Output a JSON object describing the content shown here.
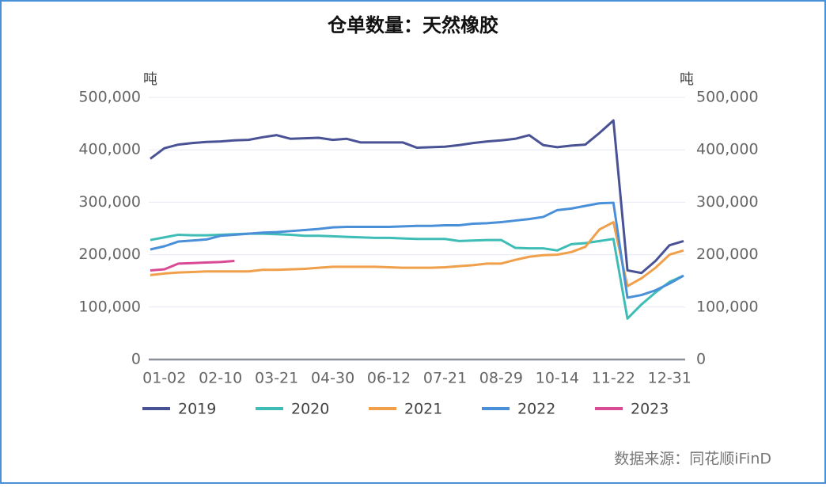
{
  "chart_data": {
    "type": "line",
    "title": "仓单数量：天然橡胶",
    "y_unit": "吨",
    "y2_unit": "吨",
    "source": "数据来源：同花顺iFinD",
    "categories": [
      null,
      "01-02",
      null,
      null,
      null,
      "02-10",
      null,
      null,
      null,
      "03-21",
      null,
      null,
      null,
      "04-30",
      null,
      null,
      null,
      "06-12",
      null,
      null,
      null,
      "07-21",
      null,
      null,
      null,
      "08-29",
      null,
      null,
      null,
      "10-14",
      null,
      null,
      null,
      "11-22",
      null,
      null,
      null,
      "12-31",
      null
    ],
    "ylim": [
      0,
      500000
    ],
    "yticks": [
      0,
      {
        "value": 100000,
        "label": "100,000"
      },
      {
        "value": 200000,
        "label": "200,000"
      },
      {
        "value": 300000,
        "label": "300,000"
      },
      {
        "value": 400000,
        "label": "400,000"
      },
      {
        "value": 500000,
        "label": "500,000"
      }
    ],
    "y2lim": [
      0,
      500000
    ],
    "y2ticks": [
      0,
      {
        "value": 100000,
        "label": "100,000"
      },
      {
        "value": 200000,
        "label": "200,000"
      },
      {
        "value": 300000,
        "label": "300,000"
      },
      {
        "value": 400000,
        "label": "400,000"
      },
      {
        "value": 500000,
        "label": "500,000"
      }
    ],
    "grid": true,
    "legend": "bottom",
    "series": [
      {
        "name": "2019",
        "color": "#4a5296",
        "values": [
          383000,
          403000,
          410000,
          413000,
          415000,
          416000,
          418000,
          419000,
          424000,
          428000,
          421000,
          422000,
          423000,
          419000,
          421000,
          414000,
          414000,
          414000,
          414000,
          404000,
          405000,
          406000,
          409000,
          413000,
          416000,
          418000,
          421000,
          428000,
          409000,
          405000,
          408000,
          410000,
          432000,
          456000,
          170000,
          165000,
          188000,
          218000,
          226000
        ]
      },
      {
        "name": "2020",
        "color": "#3dbdb5",
        "values": [
          228000,
          233000,
          238000,
          237000,
          237000,
          238000,
          239000,
          240000,
          240000,
          239000,
          238000,
          236000,
          236000,
          235000,
          234000,
          233000,
          232000,
          232000,
          231000,
          230000,
          230000,
          230000,
          226000,
          227000,
          228000,
          228000,
          213000,
          212000,
          212000,
          208000,
          220000,
          222000,
          226000,
          230000,
          78000,
          105000,
          128000,
          148000,
          160000
        ]
      },
      {
        "name": "2021",
        "color": "#f0a04b",
        "values": [
          161000,
          164000,
          166000,
          167000,
          168000,
          168000,
          168000,
          168000,
          171000,
          171000,
          172000,
          173000,
          175000,
          177000,
          177000,
          177000,
          177000,
          176000,
          175000,
          175000,
          175000,
          176000,
          178000,
          180000,
          183000,
          183000,
          190000,
          196000,
          199000,
          200000,
          205000,
          215000,
          248000,
          262000,
          140000,
          155000,
          175000,
          200000,
          208000
        ]
      },
      {
        "name": "2022",
        "color": "#4a90d9",
        "values": [
          210000,
          216000,
          225000,
          227000,
          229000,
          236000,
          238000,
          240000,
          242000,
          243000,
          245000,
          247000,
          249000,
          252000,
          253000,
          253000,
          253000,
          253000,
          254000,
          255000,
          255000,
          256000,
          256000,
          259000,
          260000,
          262000,
          265000,
          268000,
          272000,
          285000,
          288000,
          293000,
          298000,
          299000,
          118000,
          123000,
          132000,
          145000,
          160000
        ]
      },
      {
        "name": "2023",
        "color": "#d94a95",
        "values": [
          170000,
          172000,
          183000,
          184000,
          185000,
          186000,
          188000,
          null,
          null,
          null,
          null,
          null,
          null,
          null,
          null,
          null,
          null,
          null,
          null,
          null,
          null,
          null,
          null,
          null,
          null,
          null,
          null,
          null,
          null,
          null,
          null,
          null,
          null,
          null,
          null,
          null,
          null,
          null,
          null
        ]
      }
    ]
  }
}
